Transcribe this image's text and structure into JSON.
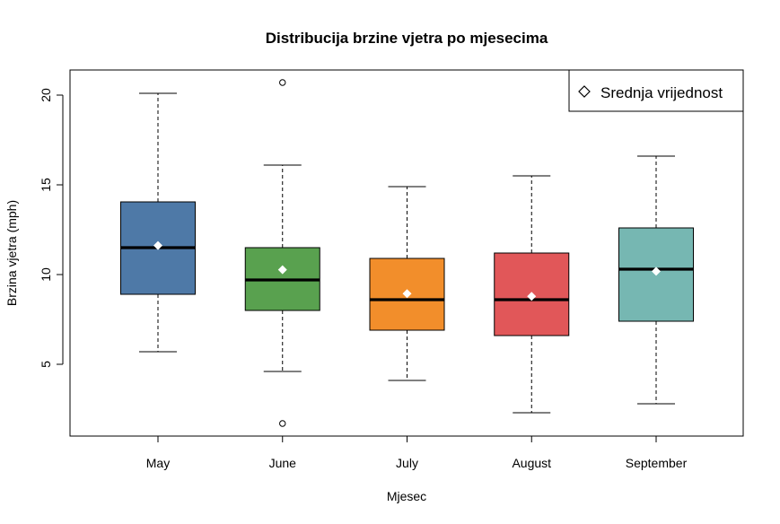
{
  "chart_data": {
    "type": "box",
    "title": "Distribucija brzine vjetra po mjesecima",
    "xlabel": "Mjesec",
    "ylabel": "Brzina vjetra (mph)",
    "ylim": [
      1.0,
      21.4
    ],
    "y_ticks": [
      5,
      10,
      15,
      20
    ],
    "grid": false,
    "legend": {
      "position": "top-right",
      "entries": [
        {
          "label": "Srednja vrijednost",
          "marker": "diamond"
        }
      ]
    },
    "categories": [
      "May",
      "June",
      "July",
      "August",
      "September"
    ],
    "boxes": [
      {
        "category": "May",
        "color": "#4E79A7",
        "whisker_low": 5.7,
        "q1": 8.9,
        "median": 11.5,
        "q3": 14.05,
        "whisker_high": 20.1,
        "mean": 11.62,
        "outliers": []
      },
      {
        "category": "June",
        "color": "#59A14F",
        "whisker_low": 4.6,
        "q1": 8.0,
        "median": 9.7,
        "q3": 11.5,
        "whisker_high": 16.1,
        "mean": 10.27,
        "outliers": [
          1.7,
          20.7
        ]
      },
      {
        "category": "July",
        "color": "#F28E2B",
        "whisker_low": 4.1,
        "q1": 6.9,
        "median": 8.6,
        "q3": 10.9,
        "whisker_high": 14.9,
        "mean": 8.94,
        "outliers": []
      },
      {
        "category": "August",
        "color": "#E15759",
        "whisker_low": 2.3,
        "q1": 6.6,
        "median": 8.6,
        "q3": 11.2,
        "whisker_high": 15.5,
        "mean": 8.79,
        "outliers": []
      },
      {
        "category": "September",
        "color": "#76B7B2",
        "whisker_low": 2.8,
        "q1": 7.4,
        "median": 10.3,
        "q3": 12.6,
        "whisker_high": 16.6,
        "mean": 10.18,
        "outliers": []
      }
    ]
  }
}
